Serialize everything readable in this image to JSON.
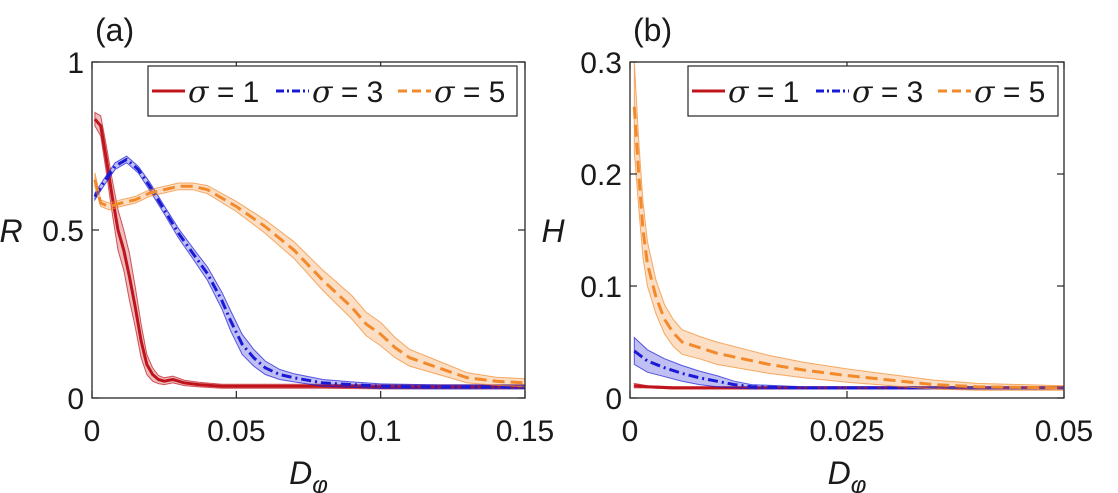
{
  "chart_data": [
    {
      "type": "line",
      "panel_label": "(a)",
      "xlabel": "D",
      "xlabel_sub": "φ",
      "ylabel": "R",
      "xlim": [
        0,
        0.15
      ],
      "ylim": [
        0,
        1
      ],
      "xticks": [
        0,
        0.05,
        0.1,
        0.15
      ],
      "xtick_labels": [
        "0",
        "0.05",
        "0.1",
        "0.15"
      ],
      "yticks": [
        0,
        0.5,
        1
      ],
      "ytick_labels": [
        "0",
        "0.5",
        "1"
      ],
      "legend": [
        "σ = 1",
        "σ = 3",
        "σ = 5"
      ],
      "legend_position": "top-right",
      "series": [
        {
          "name": "σ = 1",
          "color": "#c0141c",
          "style": "solid",
          "x": [
            0.001,
            0.003,
            0.005,
            0.007,
            0.009,
            0.011,
            0.013,
            0.015,
            0.017,
            0.019,
            0.021,
            0.023,
            0.025,
            0.028,
            0.032,
            0.037,
            0.045,
            0.06,
            0.08,
            0.1,
            0.12,
            0.15
          ],
          "y": [
            0.83,
            0.81,
            0.71,
            0.6,
            0.5,
            0.44,
            0.36,
            0.27,
            0.17,
            0.1,
            0.07,
            0.055,
            0.05,
            0.055,
            0.045,
            0.04,
            0.035,
            0.035,
            0.035,
            0.033,
            0.033,
            0.033
          ],
          "band": [
            0.02,
            0.03,
            0.04,
            0.05,
            0.06,
            0.06,
            0.07,
            0.06,
            0.05,
            0.03,
            0.02,
            0.012,
            0.01,
            0.01,
            0.008,
            0.007,
            0.006,
            0.006,
            0.006,
            0.006,
            0.006,
            0.006
          ]
        },
        {
          "name": "σ = 3",
          "color": "#1a1ad6",
          "style": "dashdot",
          "x": [
            0.001,
            0.004,
            0.008,
            0.012,
            0.016,
            0.02,
            0.025,
            0.03,
            0.035,
            0.04,
            0.045,
            0.048,
            0.052,
            0.056,
            0.06,
            0.065,
            0.07,
            0.08,
            0.09,
            0.1,
            0.12,
            0.15
          ],
          "y": [
            0.6,
            0.64,
            0.69,
            0.71,
            0.68,
            0.63,
            0.56,
            0.49,
            0.43,
            0.37,
            0.29,
            0.23,
            0.16,
            0.12,
            0.09,
            0.07,
            0.06,
            0.045,
            0.04,
            0.035,
            0.033,
            0.033
          ],
          "band": [
            0.01,
            0.01,
            0.01,
            0.01,
            0.01,
            0.012,
            0.012,
            0.014,
            0.016,
            0.02,
            0.025,
            0.03,
            0.03,
            0.025,
            0.02,
            0.015,
            0.012,
            0.01,
            0.008,
            0.007,
            0.006,
            0.006
          ]
        },
        {
          "name": "σ = 5",
          "color": "#f28a2c",
          "style": "dashed",
          "x": [
            0.001,
            0.003,
            0.006,
            0.01,
            0.015,
            0.02,
            0.025,
            0.03,
            0.035,
            0.04,
            0.05,
            0.06,
            0.07,
            0.08,
            0.09,
            0.095,
            0.1,
            0.105,
            0.11,
            0.12,
            0.13,
            0.14,
            0.15
          ],
          "y": [
            0.65,
            0.58,
            0.57,
            0.58,
            0.59,
            0.61,
            0.62,
            0.63,
            0.63,
            0.62,
            0.57,
            0.51,
            0.44,
            0.35,
            0.27,
            0.22,
            0.19,
            0.15,
            0.12,
            0.09,
            0.06,
            0.05,
            0.045
          ],
          "band": [
            0.02,
            0.01,
            0.01,
            0.01,
            0.01,
            0.01,
            0.01,
            0.01,
            0.01,
            0.012,
            0.015,
            0.02,
            0.025,
            0.03,
            0.035,
            0.035,
            0.035,
            0.03,
            0.025,
            0.02,
            0.015,
            0.012,
            0.012
          ]
        }
      ]
    },
    {
      "type": "line",
      "panel_label": "(b)",
      "xlabel": "D",
      "xlabel_sub": "φ",
      "ylabel": "H",
      "xlim": [
        0,
        0.05
      ],
      "ylim": [
        0,
        0.3
      ],
      "xticks": [
        0,
        0.025,
        0.05
      ],
      "xtick_labels": [
        "0",
        "0.025",
        "0.05"
      ],
      "yticks": [
        0,
        0.1,
        0.2,
        0.3
      ],
      "ytick_labels": [
        "0",
        "0.1",
        "0.2",
        "0.3"
      ],
      "legend": [
        "σ = 1",
        "σ = 3",
        "σ = 5"
      ],
      "legend_position": "top-right",
      "series": [
        {
          "name": "σ = 1",
          "color": "#c0141c",
          "style": "solid",
          "x": [
            0.0005,
            0.002,
            0.005,
            0.01,
            0.015,
            0.02,
            0.03,
            0.04,
            0.05
          ],
          "y": [
            0.011,
            0.01,
            0.009,
            0.009,
            0.009,
            0.009,
            0.009,
            0.009,
            0.009
          ],
          "band": [
            0.002,
            0.001,
            0.001,
            0.001,
            0.001,
            0.001,
            0.001,
            0.001,
            0.001
          ]
        },
        {
          "name": "σ = 3",
          "color": "#1a1ad6",
          "style": "dashdot",
          "x": [
            0.0005,
            0.002,
            0.004,
            0.006,
            0.008,
            0.01,
            0.012,
            0.014,
            0.02,
            0.03,
            0.04,
            0.05
          ],
          "y": [
            0.042,
            0.033,
            0.027,
            0.022,
            0.018,
            0.015,
            0.012,
            0.01,
            0.009,
            0.009,
            0.009,
            0.009
          ],
          "band": [
            0.012,
            0.01,
            0.008,
            0.007,
            0.006,
            0.005,
            0.003,
            0.002,
            0.001,
            0.001,
            0.001,
            0.001
          ]
        },
        {
          "name": "σ = 5",
          "color": "#f28a2c",
          "style": "dashed",
          "x": [
            0.0005,
            0.001,
            0.0015,
            0.002,
            0.003,
            0.004,
            0.005,
            0.006,
            0.008,
            0.01,
            0.013,
            0.016,
            0.02,
            0.025,
            0.03,
            0.035,
            0.04,
            0.05
          ],
          "y": [
            0.26,
            0.2,
            0.15,
            0.12,
            0.09,
            0.07,
            0.058,
            0.05,
            0.045,
            0.04,
            0.035,
            0.03,
            0.025,
            0.02,
            0.016,
            0.012,
            0.01,
            0.009
          ],
          "band": [
            0.04,
            0.03,
            0.025,
            0.02,
            0.015,
            0.013,
            0.012,
            0.011,
            0.01,
            0.01,
            0.009,
            0.008,
            0.007,
            0.006,
            0.005,
            0.004,
            0.003,
            0.002
          ]
        }
      ]
    }
  ]
}
